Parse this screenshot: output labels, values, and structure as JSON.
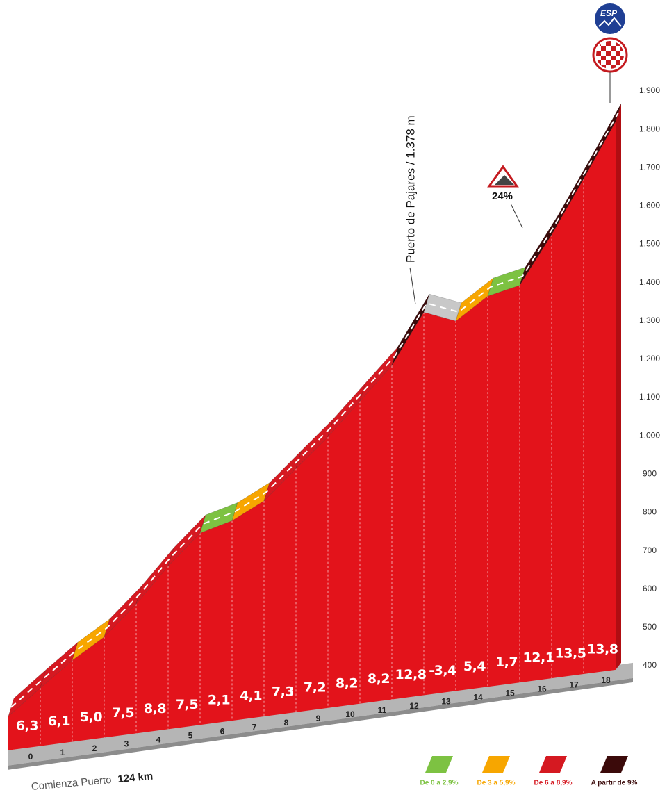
{
  "country": "ESP",
  "chart_data": {
    "type": "profile",
    "pass_label": "Puerto de Pajares / 1.378 m",
    "max_gradient": "24%",
    "start_label": "Comienza Puerto",
    "start_km": "124 km",
    "x": [
      0,
      1,
      2,
      3,
      4,
      5,
      6,
      7,
      8,
      9,
      10,
      11,
      12,
      13,
      14,
      15,
      16,
      17,
      18,
      19
    ],
    "elevation": [
      467,
      530,
      591,
      641,
      716,
      804,
      879,
      900,
      941,
      1014,
      1086,
      1168,
      1250,
      1378,
      1344,
      1398,
      1415,
      1536,
      1671,
      1809
    ],
    "xticks": [
      0,
      1,
      2,
      3,
      4,
      5,
      6,
      7,
      8,
      9,
      10,
      11,
      12,
      13,
      14,
      15,
      16,
      17,
      18
    ],
    "gradients": {
      "values": [
        6.3,
        6.1,
        5.0,
        7.5,
        8.8,
        7.5,
        2.1,
        4.1,
        7.3,
        7.2,
        8.2,
        8.2,
        12.8,
        -3.4,
        5.4,
        1.7,
        12.1,
        13.5,
        13.8
      ],
      "value_labels": [
        "6,3",
        "6,1",
        "5,0",
        "7,5",
        "8,8",
        "7,5",
        "2,1",
        "4,1",
        "7,3",
        "7,2",
        "8,2",
        "8,2",
        "12,8",
        "-3,4",
        "5,4",
        "1,7",
        "12,1",
        "13,5",
        "13,8"
      ]
    },
    "ylim": [
      400,
      1900
    ],
    "yticks": [
      400,
      500,
      600,
      700,
      800,
      900,
      {
        "value": 1000,
        "label": "1.000"
      },
      {
        "value": 1100,
        "label": "1.100"
      },
      {
        "value": 1200,
        "label": "1.200"
      },
      {
        "value": 1300,
        "label": "1.300"
      },
      {
        "value": 1400,
        "label": "1.400"
      },
      {
        "value": 1500,
        "label": "1.500"
      },
      {
        "value": 1600,
        "label": "1.600"
      },
      {
        "value": 1700,
        "label": "1.700"
      },
      {
        "value": 1800,
        "label": "1.800"
      },
      {
        "value": 1900,
        "label": "1.900"
      }
    ],
    "face_color": "#e3131b",
    "legend": [
      {
        "label": "De 0 a 2,9%",
        "color": "#7dc242",
        "min": 0
      },
      {
        "label": "De 3 a 5,9%",
        "color": "#f7a600",
        "min": 3
      },
      {
        "label": "De 6 a 8,9%",
        "color": "#d51921",
        "min": 6
      },
      {
        "label": "A partir de 9%",
        "color": "#3b0a0a",
        "min": 9
      }
    ]
  }
}
